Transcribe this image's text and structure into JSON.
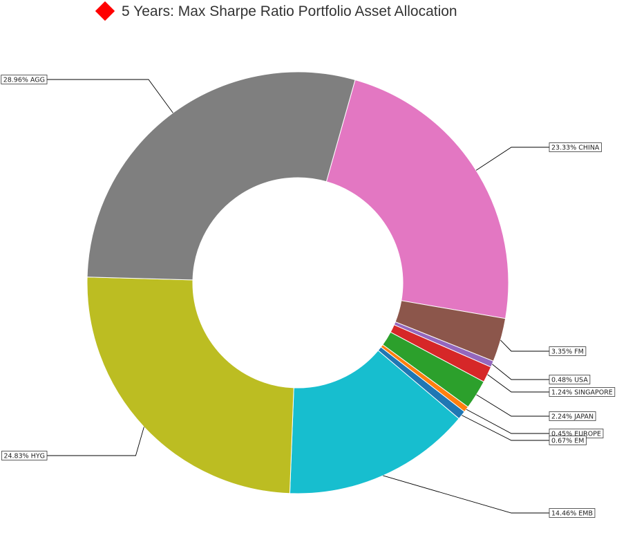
{
  "header": {
    "title": "5 Years: Max Sharpe Ratio Portfolio Asset Allocation",
    "title_icon": "red-diamond-icon",
    "title_icon_color": "#ff0000"
  },
  "chart_data": {
    "type": "pie",
    "variant": "donut",
    "title": "5 Years: Max Sharpe Ratio Portfolio Asset Allocation",
    "grid": false,
    "legend": "none",
    "slices": [
      {
        "label": "CHINA",
        "value": 23.33,
        "text": "23.33% CHINA",
        "color": "#e377c2"
      },
      {
        "label": "FM",
        "value": 3.35,
        "text": "3.35% FM",
        "color": "#8c564b"
      },
      {
        "label": "USA",
        "value": 0.48,
        "text": "0.48% USA",
        "color": "#9467bd"
      },
      {
        "label": "SINGAPORE",
        "value": 1.24,
        "text": "1.24% SINGAPORE",
        "color": "#d62728"
      },
      {
        "label": "JAPAN",
        "value": 2.24,
        "text": "2.24% JAPAN",
        "color": "#2ca02c"
      },
      {
        "label": "EUROPE",
        "value": 0.45,
        "text": "0.45% EUROPE",
        "color": "#ff7f0e"
      },
      {
        "label": "EM",
        "value": 0.67,
        "text": "0.67% EM",
        "color": "#1f77b4"
      },
      {
        "label": "EMB",
        "value": 14.46,
        "text": "14.46% EMB",
        "color": "#17becf"
      },
      {
        "label": "HYG",
        "value": 24.83,
        "text": "24.83% HYG",
        "color": "#bcbd22"
      },
      {
        "label": "AGG",
        "value": 28.96,
        "text": "28.96% AGG",
        "color": "#7f7f7f"
      }
    ]
  }
}
